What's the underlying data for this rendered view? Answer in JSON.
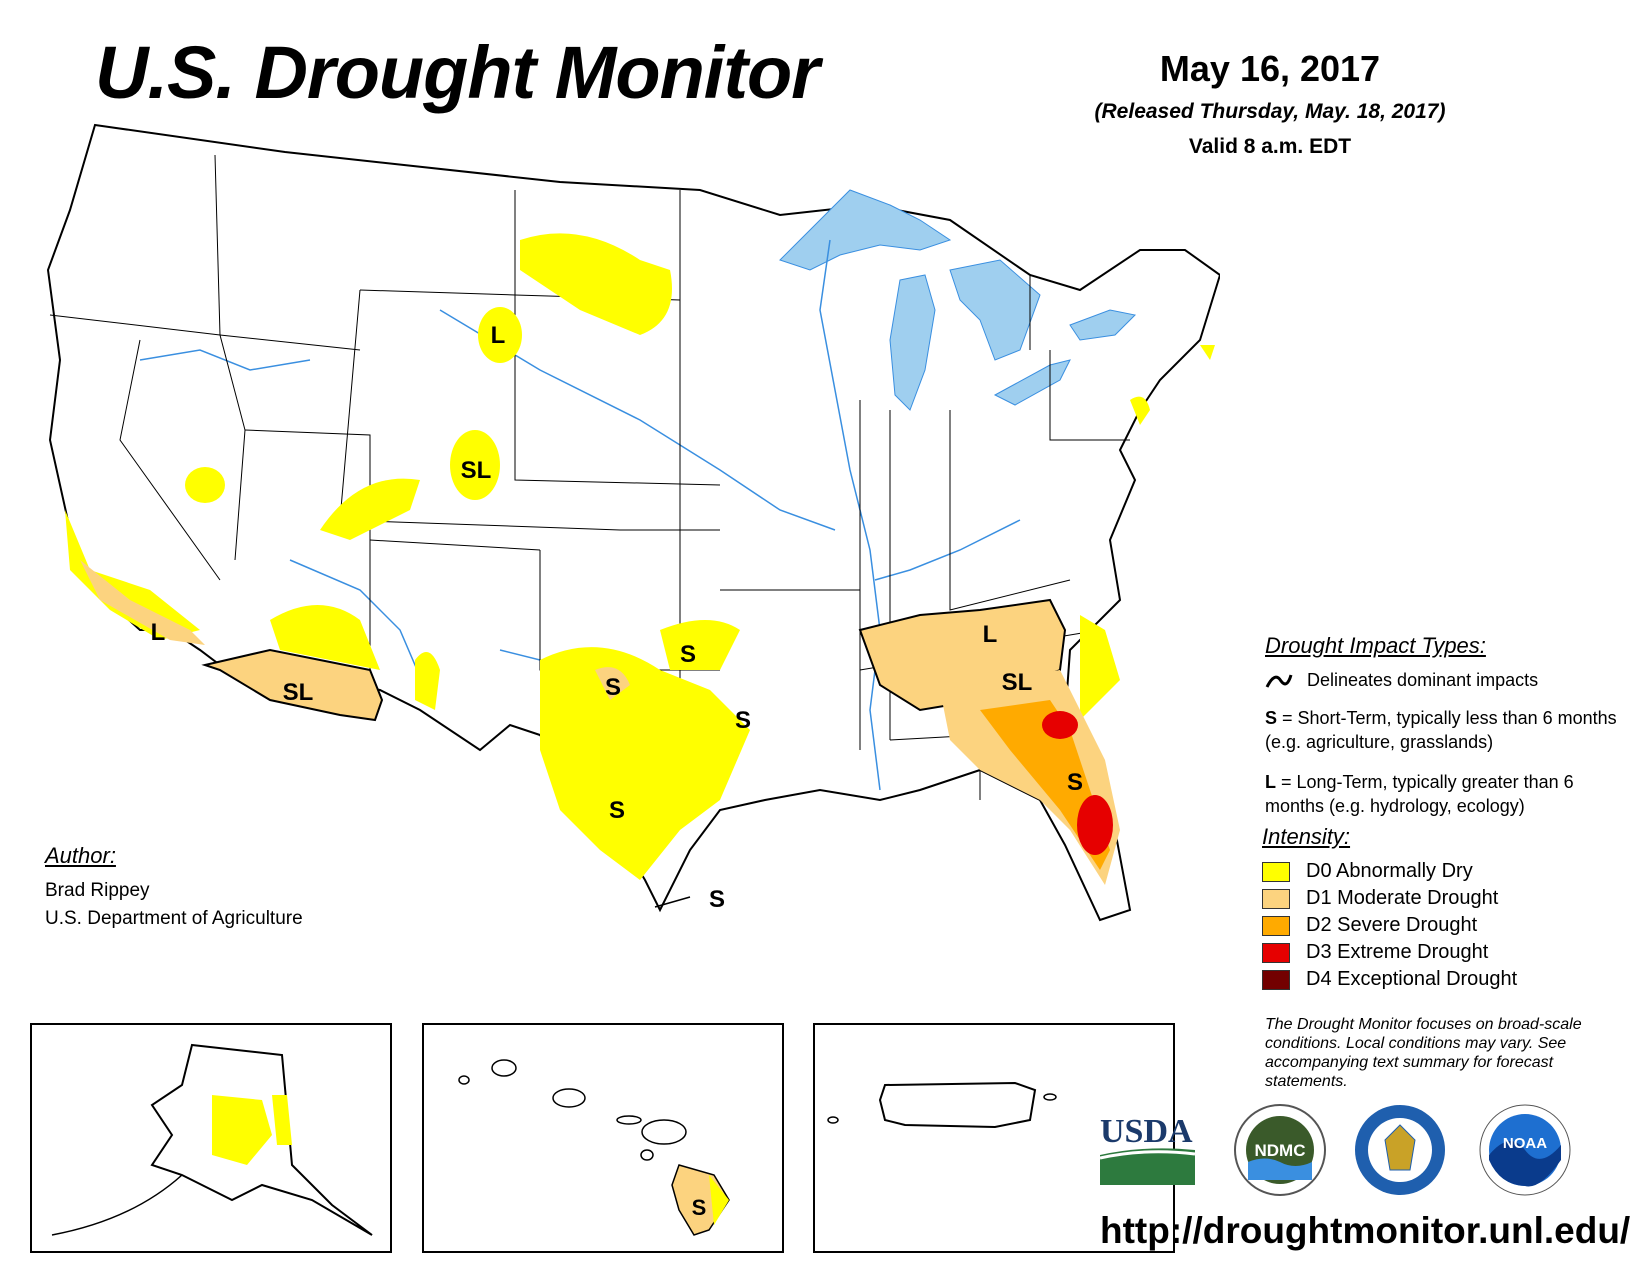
{
  "header": {
    "title": "U.S. Drought Monitor",
    "date": "May 16, 2017",
    "released": "(Released Thursday, May. 18, 2017)",
    "valid": "Valid 8 a.m. EDT"
  },
  "map_labels": {
    "s": "S",
    "l": "L",
    "sl": "SL"
  },
  "legend": {
    "impact_title": "Drought Impact Types:",
    "delineates": "Delineates dominant impacts",
    "s_key": "S",
    "s_desc": " = Short-Term, typically less than 6 months (e.g. agriculture, grasslands)",
    "l_key": "L",
    "l_desc": " = Long-Term, typically greater than 6 months (e.g. hydrology, ecology)",
    "intensity_title": "Intensity:",
    "intensity": [
      {
        "label": "D0 Abnormally Dry",
        "color": "#ffff00"
      },
      {
        "label": "D1 Moderate Drought",
        "color": "#fcd37f"
      },
      {
        "label": "D2 Severe Drought",
        "color": "#ffaa00"
      },
      {
        "label": "D3 Extreme Drought",
        "color": "#e60000"
      },
      {
        "label": "D4 Exceptional Drought",
        "color": "#730000"
      }
    ]
  },
  "author": {
    "label": "Author:",
    "name": "Brad Rippey",
    "org": "U.S. Department of Agriculture"
  },
  "disclaimer": "The Drought Monitor focuses on broad-scale conditions. Local conditions may vary. See accompanying text summary for forecast statements.",
  "logos": {
    "usda": "USDA",
    "ndmc": "NDMC",
    "noaa": "NOAA"
  },
  "url": "http://droughtmonitor.unl.edu/",
  "colors": {
    "water": "#9fcfef",
    "river": "#3a8fe0",
    "d0": "#ffff00",
    "d1": "#fcd37f",
    "d2": "#ffaa00",
    "d3": "#e60000"
  }
}
